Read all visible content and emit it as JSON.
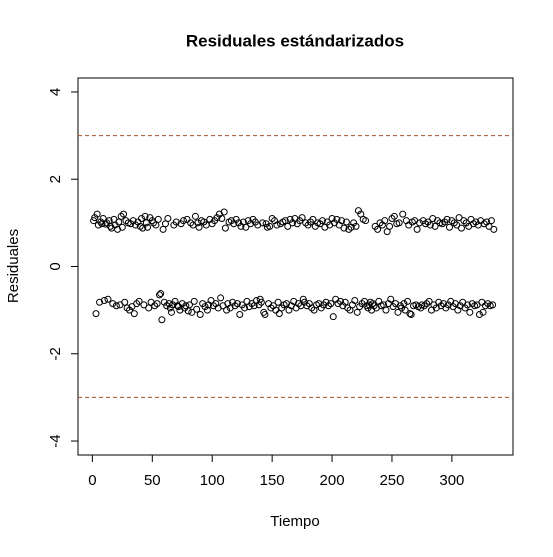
{
  "chart_data": {
    "type": "scatter",
    "title": "Residuales estándarizados",
    "xlabel": "Tiempo",
    "ylabel": "Residuales",
    "color": "#000000",
    "xlim": [
      -12,
      351
    ],
    "ylim": [
      -4.32,
      4.32
    ],
    "xticks": [
      0,
      50,
      100,
      150,
      200,
      250,
      300
    ],
    "yticks": [
      -4,
      -2,
      0,
      2,
      4
    ],
    "hlines": [
      3,
      -3
    ],
    "hline_color": "#a0522d",
    "x": [
      1,
      2,
      3,
      4,
      5,
      6,
      7,
      8,
      9,
      10,
      11,
      12,
      13,
      14,
      15,
      16,
      17,
      18,
      19,
      20,
      21,
      22,
      23,
      24,
      25,
      26,
      27,
      28,
      29,
      30,
      31,
      32,
      33,
      34,
      35,
      36,
      37,
      38,
      39,
      40,
      41,
      42,
      43,
      44,
      45,
      46,
      47,
      48,
      49,
      50,
      51,
      52,
      53,
      54,
      55,
      56,
      57,
      58,
      59,
      60,
      61,
      62,
      63,
      64,
      65,
      66,
      67,
      68,
      69,
      70,
      71,
      72,
      73,
      74,
      75,
      76,
      77,
      78,
      79,
      80,
      81,
      82,
      83,
      84,
      85,
      86,
      87,
      88,
      89,
      90,
      91,
      92,
      93,
      94,
      95,
      96,
      97,
      98,
      99,
      100,
      101,
      102,
      103,
      104,
      105,
      106,
      107,
      108,
      109,
      110,
      111,
      112,
      113,
      114,
      115,
      116,
      117,
      118,
      119,
      120,
      121,
      122,
      123,
      124,
      125,
      126,
      127,
      128,
      129,
      130,
      131,
      132,
      133,
      134,
      135,
      136,
      137,
      138,
      139,
      140,
      141,
      142,
      143,
      144,
      145,
      146,
      147,
      148,
      149,
      150,
      151,
      152,
      153,
      154,
      155,
      156,
      157,
      158,
      159,
      160,
      161,
      162,
      163,
      164,
      165,
      166,
      167,
      168,
      169,
      170,
      171,
      172,
      173,
      174,
      175,
      176,
      177,
      178,
      179,
      180,
      181,
      182,
      183,
      184,
      185,
      186,
      187,
      188,
      189,
      190,
      191,
      192,
      193,
      194,
      195,
      196,
      197,
      198,
      199,
      200,
      201,
      202,
      203,
      204,
      205,
      206,
      207,
      208,
      209,
      210,
      211,
      212,
      213,
      214,
      215,
      216,
      217,
      218,
      219,
      220,
      221,
      222,
      223,
      224,
      225,
      226,
      227,
      228,
      229,
      230,
      231,
      232,
      233,
      234,
      235,
      236,
      237,
      238,
      239,
      240,
      241,
      242,
      243,
      244,
      245,
      246,
      247,
      248,
      249,
      250,
      251,
      252,
      253,
      254,
      255,
      256,
      257,
      258,
      259,
      260,
      261,
      262,
      263,
      264,
      265,
      266,
      267,
      268,
      269,
      270,
      271,
      272,
      273,
      274,
      275,
      276,
      277,
      278,
      279,
      280,
      281,
      282,
      283,
      284,
      285,
      286,
      287,
      288,
      289,
      290,
      291,
      292,
      293,
      294,
      295,
      296,
      297,
      298,
      299,
      300,
      301,
      302,
      303,
      304,
      305,
      306,
      307,
      308,
      309,
      310,
      311,
      312,
      313,
      314,
      315,
      316,
      317,
      318,
      319,
      320,
      321,
      322,
      323,
      324,
      325,
      326,
      327,
      328,
      329,
      330,
      331,
      332,
      333,
      334,
      335
    ],
    "values": [
      1.05,
      1.12,
      -1.08,
      1.2,
      0.95,
      -0.82,
      1.02,
      0.98,
      1.1,
      -0.78,
      0.97,
      1.0,
      -0.75,
      1.05,
      0.92,
      0.88,
      -0.85,
      1.08,
      0.95,
      -0.9,
      0.85,
      1.02,
      -0.88,
      1.15,
      0.9,
      1.2,
      -0.82,
      1.05,
      -0.95,
      1.0,
      -1.0,
      0.98,
      -0.92,
      1.05,
      -1.08,
      0.95,
      -0.85,
      1.02,
      -0.8,
      0.92,
      1.1,
      0.88,
      -0.88,
      1.15,
      1.0,
      0.9,
      -0.95,
      1.12,
      -0.82,
      1.05,
      1.0,
      -0.9,
      0.95,
      -0.85,
      1.08,
      -0.65,
      -0.62,
      -1.22,
      0.85,
      -0.82,
      0.98,
      -0.9,
      1.1,
      -0.85,
      -0.95,
      -1.05,
      -0.88,
      0.95,
      -0.8,
      1.02,
      -0.9,
      -0.92,
      -1.0,
      0.98,
      -0.85,
      1.05,
      -0.95,
      -0.9,
      1.08,
      -1.02,
      -0.88,
      1.0,
      -1.05,
      0.95,
      -0.8,
      1.15,
      -0.98,
      1.0,
      0.9,
      -1.1,
      1.05,
      -0.85,
      1.02,
      -0.92,
      0.95,
      -1.0,
      -0.88,
      1.08,
      -0.78,
      0.98,
      -0.9,
      1.05,
      -0.85,
      1.12,
      -0.95,
      1.2,
      -0.72,
      1.1,
      -0.9,
      1.25,
      0.88,
      -1.0,
      -0.85,
      1.02,
      -0.95,
      1.05,
      -0.82,
      0.98,
      -0.9,
      1.08,
      -0.85,
      1.0,
      -1.1,
      0.92,
      -0.88,
      1.02,
      -0.95,
      0.9,
      -0.8,
      1.05,
      -0.92,
      0.98,
      -0.85,
      1.08,
      -0.9,
      1.02,
      -0.78,
      0.95,
      -0.88,
      -0.75,
      -0.82,
      1.0,
      -1.05,
      -1.1,
      0.98,
      0.9,
      -0.85,
      0.92,
      -0.95,
      1.1,
      -0.9,
      1.05,
      -1.0,
      0.95,
      -0.82,
      -1.08,
      0.98,
      -0.95,
      1.02,
      -0.88,
      1.05,
      -0.85,
      0.92,
      -1.0,
      1.08,
      -0.9,
      1.0,
      -0.8,
      1.1,
      -0.95,
      0.98,
      -0.85,
      1.05,
      -0.9,
      1.12,
      -0.75,
      -0.82,
      1.0,
      -0.9,
      0.95,
      -0.85,
      1.02,
      -0.95,
      1.08,
      -1.0,
      0.92,
      -0.88,
      1.0,
      -0.85,
      0.98,
      -0.95,
      1.05,
      -0.88,
      0.9,
      -0.82,
      1.02,
      -0.9,
      0.95,
      -0.85,
      1.1,
      -1.15,
      1.0,
      -0.75,
      1.08,
      -0.85,
      0.95,
      -0.8,
      1.05,
      -0.9,
      0.88,
      -0.82,
      1.02,
      -0.95,
      0.85,
      -1.0,
      0.9,
      -0.88,
      1.0,
      -0.78,
      0.92,
      -1.05,
      1.28,
      -0.92,
      1.2,
      -0.85,
      1.08,
      -0.8,
      1.05,
      -0.9,
      -0.95,
      -0.88,
      -0.82,
      -1.0,
      -0.85,
      -0.9,
      0.92,
      -0.95,
      0.85,
      -0.8,
      1.0,
      -0.9,
      0.95,
      -0.88,
      1.05,
      -1.0,
      0.8,
      -0.85,
      0.92,
      -0.75,
      1.1,
      -0.92,
      1.15,
      -0.85,
      0.98,
      -1.05,
      1.0,
      -0.9,
      -0.95,
      1.2,
      -0.85,
      -1.0,
      1.05,
      -0.8,
      0.95,
      -1.08,
      -1.1,
      1.02,
      -0.9,
      1.05,
      -0.88,
      0.85,
      -0.92,
      1.0,
      -0.95,
      -0.88,
      1.05,
      -0.9,
      0.98,
      -0.85,
      1.02,
      -0.8,
      0.95,
      -1.0,
      1.1,
      -0.88,
      0.92,
      -0.95,
      1.05,
      -0.82,
      1.0,
      -0.9,
      0.98,
      -0.85,
      1.02,
      -0.95,
      1.08,
      -0.88,
      0.9,
      -0.8,
      1.05,
      -0.92,
      1.0,
      -0.85,
      0.95,
      -1.0,
      1.12,
      -0.9,
      0.88,
      -0.82,
      1.05,
      -0.95,
      1.0,
      -0.88,
      0.92,
      -1.05,
      1.08,
      -0.85,
      0.98,
      -0.9,
      1.02,
      -0.88,
      0.95,
      -1.1,
      1.05,
      -0.82,
      -1.05,
      0.98,
      -0.9,
      1.02,
      -0.85,
      0.92,
      -0.9,
      1.05,
      -0.88,
      0.85
    ]
  }
}
